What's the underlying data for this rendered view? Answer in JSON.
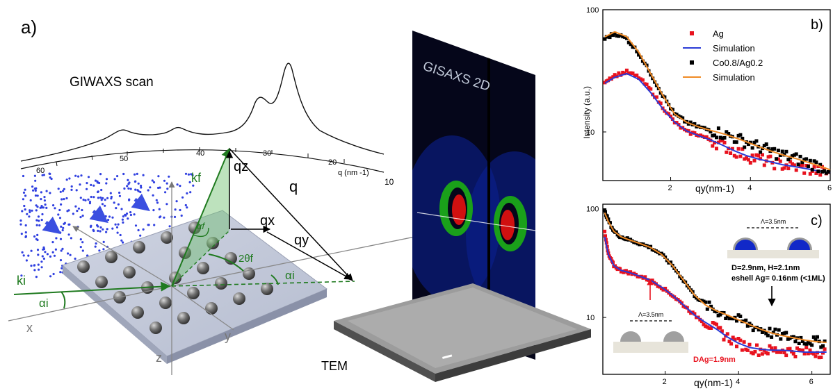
{
  "colors": {
    "ag": "#e8121e",
    "sim_blue": "#2a3ad6",
    "coag": "#000000",
    "sim_orange": "#f08a24",
    "green": "#1f7a1f",
    "dots": "#3040e0"
  },
  "panel_a": {
    "label": "a)",
    "giwaxs_title": "GIWAXS scan",
    "q_axis_label": "q (nm -1)",
    "q_ticks": [
      "60",
      "50",
      "40",
      "30",
      "20",
      "10"
    ],
    "gisaxs_label": "GISAXS 2D",
    "tem_label": "TEM",
    "vec": {
      "kf": "kf",
      "ki": "ki",
      "qz": "qz",
      "qx": "qx",
      "qy": "qy",
      "q": "q",
      "alpha_f": "αf",
      "alpha_i": "αi",
      "two_theta_f": "2θf",
      "x": "x",
      "y": "y",
      "z": "z"
    }
  },
  "panel_b": {
    "label": "b)",
    "ylabel": "Intensity (a.u.)",
    "xlabel": "qy(nm-1)"
  },
  "panel_c": {
    "label": "c)",
    "xlabel": "qy(nm-1)",
    "annot_lambda_big": "Λ=3.5nm",
    "annot_lambda_small": "Λ=3.5nm",
    "annot_dims": "D=2.9nm, H=2.1nm",
    "annot_shell": "eshell Ag= 0.16nm (<1ML)",
    "annot_dag": "DAg=1.9nm"
  },
  "chart_data": [
    {
      "type": "scatter",
      "panel": "b",
      "xlabel": "qy(nm-1)",
      "ylabel": "Intensity (a.u.)",
      "xlim": [
        0.3,
        6.0
      ],
      "ylim": [
        4,
        100
      ],
      "yscale": "log",
      "xticks": [
        "2",
        "4",
        "6"
      ],
      "yticks": [
        "10",
        "100"
      ],
      "legend_position": "top-right",
      "series": [
        {
          "name": "Ag",
          "kind": "points",
          "x": [
            0.35,
            0.6,
            0.9,
            1.2,
            1.5,
            1.8,
            2.1,
            2.4,
            2.7,
            3.0,
            3.3,
            3.6,
            3.9,
            4.2,
            4.5,
            4.8,
            5.1,
            5.4,
            5.7,
            6.0
          ],
          "y": [
            26,
            29,
            31,
            28,
            22,
            16,
            12,
            10,
            9.5,
            8.6,
            7.8,
            7.0,
            6.4,
            6.0,
            5.7,
            5.4,
            5.2,
            5.0,
            4.8,
            4.6
          ]
        },
        {
          "name": "Simulation",
          "kind": "line",
          "x": [
            0.35,
            0.6,
            0.9,
            1.2,
            1.5,
            1.8,
            2.1,
            2.4,
            2.7,
            3.0,
            3.3,
            3.6,
            3.9,
            4.2,
            4.5,
            4.8,
            5.1,
            5.4,
            5.7,
            6.0
          ],
          "y": [
            25,
            28,
            30,
            27,
            21,
            15.5,
            12,
            10.2,
            9.3,
            8.6,
            7.8,
            7.0,
            6.4,
            6.0,
            5.7,
            5.4,
            5.2,
            5.0,
            4.8,
            4.6
          ]
        },
        {
          "name": "Co0.8/Ag0.2",
          "kind": "points",
          "x": [
            0.35,
            0.6,
            0.9,
            1.2,
            1.5,
            1.8,
            2.1,
            2.4,
            2.7,
            3.0,
            3.3,
            3.6,
            3.9,
            4.2,
            4.5,
            4.8,
            5.1,
            5.4,
            5.7,
            6.0
          ],
          "y": [
            58,
            64,
            58,
            44,
            30,
            20,
            14,
            12,
            11,
            10.3,
            9.7,
            9.0,
            8.3,
            7.6,
            7.0,
            6.5,
            6.1,
            5.7,
            5.3,
            4.9
          ]
        },
        {
          "name": "Simulation",
          "kind": "line",
          "x": [
            0.35,
            0.6,
            0.9,
            1.2,
            1.5,
            1.8,
            2.1,
            2.4,
            2.7,
            3.0,
            3.3,
            3.6,
            3.9,
            4.2,
            4.5,
            4.8,
            5.1,
            5.4,
            5.7,
            6.0
          ],
          "y": [
            60,
            66,
            60,
            45,
            30,
            20,
            14,
            12,
            11,
            10.3,
            9.7,
            9.0,
            8.3,
            7.6,
            7.0,
            6.5,
            6.1,
            5.7,
            5.3,
            4.9
          ]
        }
      ]
    },
    {
      "type": "scatter",
      "panel": "c",
      "xlabel": "qy(nm-1)",
      "ylabel": "",
      "xlim": [
        0.3,
        6.5
      ],
      "ylim": [
        3,
        110
      ],
      "yscale": "log",
      "xticks": [
        "2",
        "4",
        "6"
      ],
      "yticks": [
        "10",
        "100"
      ],
      "series": [
        {
          "name": "",
          "kind": "points",
          "color": "ag",
          "x": [
            0.35,
            0.45,
            0.6,
            0.8,
            1.0,
            1.3,
            1.6,
            1.9,
            2.2,
            2.5,
            2.8,
            3.1,
            3.4,
            3.7,
            4.0,
            4.3,
            4.6,
            4.9,
            5.2,
            5.5,
            5.8,
            6.1,
            6.4
          ],
          "y": [
            60,
            38,
            30,
            27,
            26,
            24,
            22,
            19,
            16,
            13,
            10.5,
            9.0,
            7.8,
            6.6,
            5.8,
            5.3,
            5.0,
            5.0,
            5.0,
            4.9,
            4.8,
            4.8,
            4.8
          ]
        },
        {
          "name": "",
          "kind": "line",
          "color": "sim_blue",
          "x": [
            0.35,
            0.45,
            0.6,
            0.8,
            1.0,
            1.3,
            1.6,
            1.9,
            2.2,
            2.5,
            2.8,
            3.1,
            3.4,
            3.7,
            4.0,
            4.3,
            4.6,
            4.9,
            5.2,
            5.5,
            5.8,
            6.1,
            6.4
          ],
          "y": [
            55,
            38,
            30,
            27,
            26,
            24,
            22,
            19,
            16,
            13,
            10.5,
            9.0,
            7.8,
            6.6,
            5.8,
            5.3,
            5.1,
            5.0,
            5.0,
            4.9,
            4.8,
            4.8,
            4.8
          ]
        },
        {
          "name": "",
          "kind": "points",
          "color": "coag",
          "x": [
            0.35,
            0.45,
            0.6,
            0.8,
            1.0,
            1.3,
            1.6,
            1.9,
            2.2,
            2.5,
            2.8,
            3.1,
            3.4,
            3.7,
            4.0,
            4.3,
            4.6,
            4.9,
            5.2,
            5.5,
            5.8,
            6.1,
            6.4
          ],
          "y": [
            95,
            78,
            62,
            55,
            52,
            48,
            44,
            38,
            30,
            22,
            16,
            13,
            11.5,
            10.5,
            9.5,
            8.6,
            7.8,
            7.2,
            6.8,
            6.5,
            6.2,
            6.0,
            5.9
          ]
        },
        {
          "name": "",
          "kind": "line",
          "color": "sim_orange",
          "x": [
            0.35,
            0.45,
            0.6,
            0.8,
            1.0,
            1.3,
            1.6,
            1.9,
            2.2,
            2.5,
            2.8,
            3.1,
            3.4,
            3.7,
            4.0,
            4.3,
            4.6,
            4.9,
            5.2,
            5.5,
            5.8,
            6.1,
            6.4
          ],
          "y": [
            92,
            76,
            62,
            55,
            52,
            48,
            44,
            38,
            30,
            22,
            16,
            13,
            11.5,
            10.5,
            9.5,
            8.6,
            7.8,
            7.2,
            6.8,
            6.5,
            6.2,
            6.0,
            5.9
          ]
        }
      ]
    }
  ]
}
